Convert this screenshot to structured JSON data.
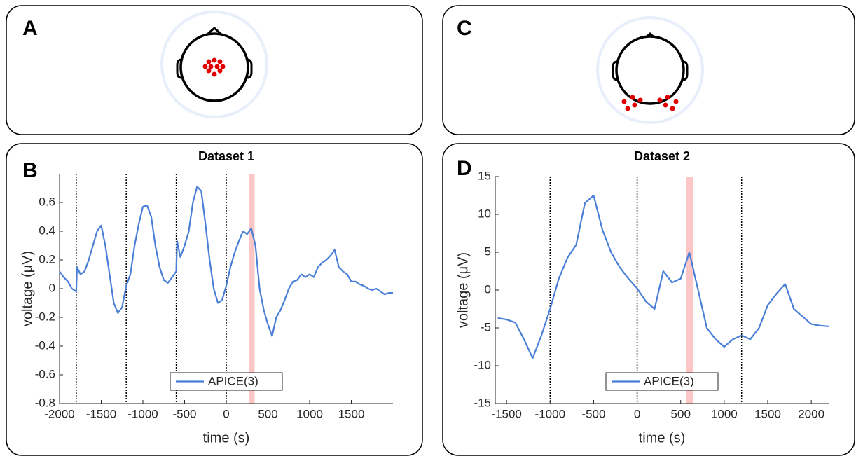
{
  "panel_labels": [
    "A",
    "B",
    "C",
    "D"
  ],
  "chart_data": [
    {
      "type": "line",
      "title": "Dataset 1",
      "xlabel": "time (s)",
      "ylabel": "voltage (μV)",
      "x": [
        -2000,
        -1950,
        -1900,
        -1850,
        -1800,
        -1790,
        -1750,
        -1700,
        -1650,
        -1600,
        -1550,
        -1500,
        -1450,
        -1400,
        -1350,
        -1300,
        -1250,
        -1200,
        -1150,
        -1100,
        -1050,
        -1000,
        -950,
        -900,
        -850,
        -800,
        -750,
        -700,
        -650,
        -600,
        -590,
        -550,
        -500,
        -450,
        -400,
        -350,
        -300,
        -250,
        -200,
        -150,
        -100,
        -50,
        0,
        50,
        100,
        150,
        200,
        250,
        300,
        350,
        400,
        450,
        500,
        550,
        600,
        650,
        700,
        750,
        800,
        850,
        900,
        950,
        1000,
        1050,
        1100,
        1150,
        1200,
        1250,
        1300,
        1350,
        1400,
        1450,
        1500,
        1550,
        1600,
        1650,
        1700,
        1750,
        1800,
        1850,
        1900,
        1950,
        2000
      ],
      "series": [
        {
          "name": "APICE(3)",
          "color": "#4a7fd8",
          "values": [
            0.12,
            0.08,
            0.05,
            0.0,
            -0.02,
            0.15,
            0.1,
            0.12,
            0.2,
            0.3,
            0.4,
            0.44,
            0.3,
            0.1,
            -0.1,
            -0.17,
            -0.13,
            0.02,
            0.1,
            0.3,
            0.45,
            0.57,
            0.58,
            0.5,
            0.3,
            0.15,
            0.06,
            0.04,
            0.08,
            0.12,
            0.33,
            0.22,
            0.3,
            0.4,
            0.6,
            0.71,
            0.68,
            0.45,
            0.2,
            0.0,
            -0.1,
            -0.08,
            0.02,
            0.15,
            0.25,
            0.33,
            0.4,
            0.38,
            0.42,
            0.3,
            0.0,
            -0.15,
            -0.25,
            -0.33,
            -0.2,
            -0.15,
            -0.08,
            0.0,
            0.05,
            0.06,
            0.1,
            0.08,
            0.1,
            0.08,
            0.15,
            0.18,
            0.2,
            0.23,
            0.27,
            0.15,
            0.12,
            0.1,
            0.05,
            0.05,
            0.03,
            0.02,
            0.0,
            -0.01,
            0.0,
            -0.02,
            -0.04,
            -0.03,
            -0.03
          ]
        }
      ],
      "xlim": [
        -2000,
        2000
      ],
      "xticks": [
        -2000,
        -1500,
        -1000,
        -500,
        0,
        500,
        1000,
        1500
      ],
      "ylim": [
        -0.8,
        0.8
      ],
      "yticks": [
        -0.8,
        -0.6,
        -0.4,
        -0.2,
        0,
        0.2,
        0.4,
        0.6
      ],
      "vlines": [
        -1800,
        -1200,
        -600,
        0
      ],
      "highlight": [
        270,
        340
      ],
      "highlight_color": "#fdc6c6",
      "legend": "bottom"
    },
    {
      "type": "line",
      "title": "Dataset 2",
      "xlabel": "time (s)",
      "ylabel": "voltage (μV)",
      "x": [
        -1600,
        -1500,
        -1400,
        -1300,
        -1200,
        -1100,
        -1000,
        -900,
        -800,
        -700,
        -600,
        -500,
        -400,
        -300,
        -200,
        -100,
        0,
        100,
        200,
        300,
        400,
        500,
        600,
        700,
        800,
        900,
        1000,
        1100,
        1200,
        1300,
        1400,
        1500,
        1600,
        1700,
        1800,
        1900,
        2000,
        2100,
        2200
      ],
      "series": [
        {
          "name": "APICE(3)",
          "color": "#4a7fd8",
          "values": [
            -3.7,
            -3.9,
            -4.3,
            -6.5,
            -9,
            -6,
            -2.5,
            1.5,
            4.3,
            6,
            11.5,
            12.5,
            8,
            5,
            3,
            1.5,
            0.2,
            -1.5,
            -2.5,
            2.5,
            1,
            1.5,
            5,
            0,
            -5,
            -6.5,
            -7.5,
            -6.5,
            -6,
            -6.5,
            -5,
            -2,
            -0.5,
            0.8,
            -2.5,
            -3.5,
            -4.5,
            -4.7,
            -4.8
          ]
        }
      ],
      "xlim": [
        -1630,
        2200
      ],
      "xticks": [
        -1500,
        -1000,
        -500,
        0,
        500,
        1000,
        1500,
        2000
      ],
      "ylim": [
        -15,
        15
      ],
      "yticks": [
        -15,
        -10,
        -5,
        0,
        5,
        10,
        15
      ],
      "vlines": [
        -1000,
        0,
        1200
      ],
      "highlight": [
        560,
        640
      ],
      "highlight_color": "#fdc6c6",
      "legend": "bottom"
    }
  ]
}
